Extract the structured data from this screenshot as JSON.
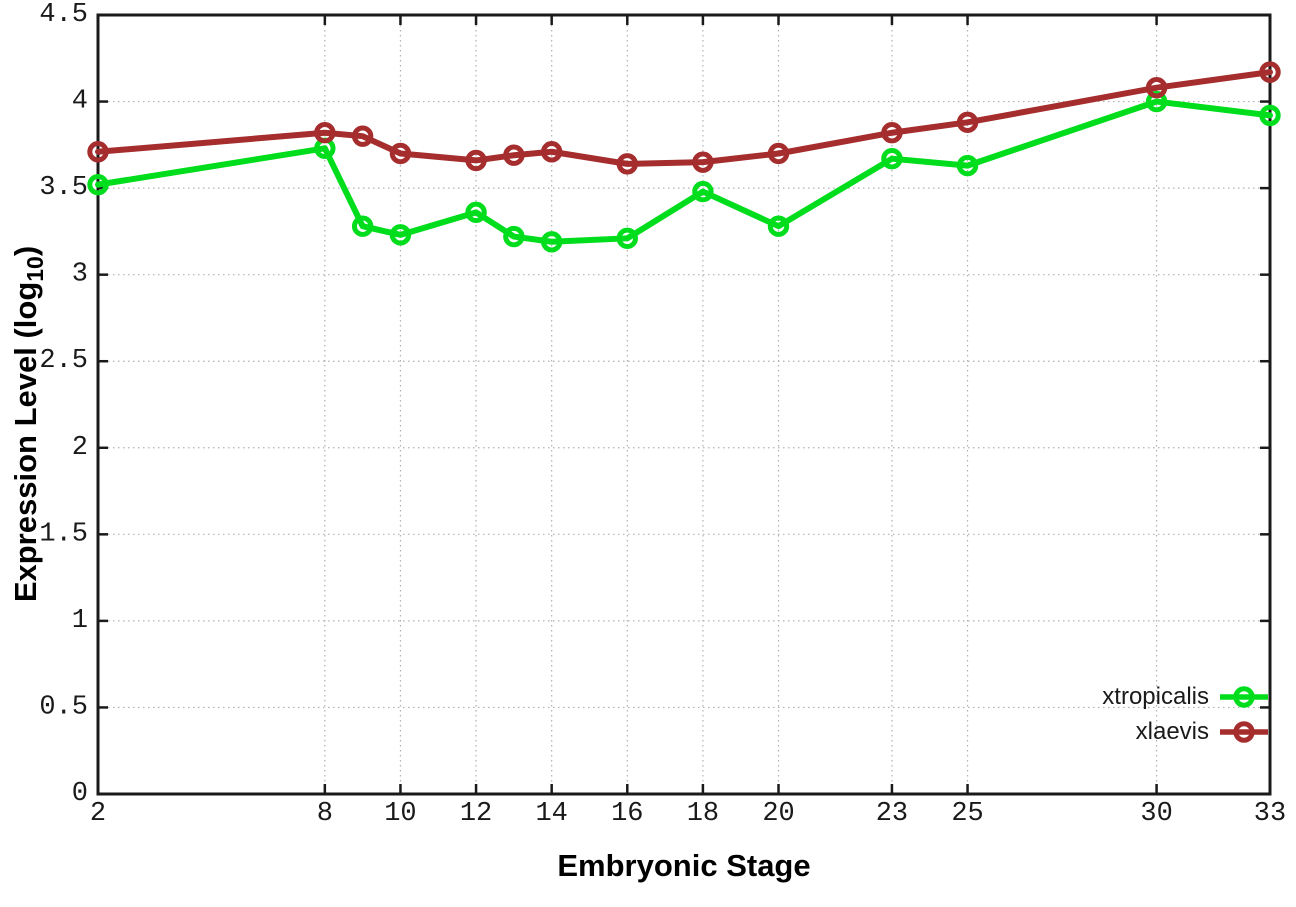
{
  "chart_data": {
    "type": "line",
    "title": "",
    "xlabel": "Embryonic Stage",
    "ylabel": "Expression Level (log10)",
    "ylabel_parts": {
      "pre": "Expression Level (log",
      "sub": "10",
      "post": ")"
    },
    "xlim": [
      2,
      33
    ],
    "ylim": [
      0,
      4.5
    ],
    "x_tick_values": [
      2,
      8,
      10,
      12,
      14,
      16,
      18,
      20,
      23,
      25,
      30,
      33
    ],
    "x_tick_labels": [
      "2",
      "8",
      "10",
      "12",
      "14",
      "16",
      "18",
      "20",
      "23",
      "25",
      "30",
      "33"
    ],
    "y_tick_values": [
      0,
      0.5,
      1,
      1.5,
      2,
      2.5,
      3,
      3.5,
      4,
      4.5
    ],
    "y_tick_labels": [
      "0",
      "0.5",
      "1",
      "1.5",
      "2",
      "2.5",
      "3",
      "3.5",
      "4",
      "4.5"
    ],
    "grid": true,
    "legend_position": "bottom-right",
    "x": [
      2,
      8,
      9,
      10,
      12,
      13,
      14,
      16,
      18,
      20,
      23,
      25,
      30,
      33
    ],
    "series": [
      {
        "name": "xtropicalis",
        "color": "#00dd1c",
        "marker": "open-circle",
        "values": [
          3.52,
          3.73,
          3.28,
          3.23,
          3.36,
          3.22,
          3.19,
          3.21,
          3.48,
          3.28,
          3.67,
          3.63,
          4.0,
          3.92
        ]
      },
      {
        "name": "xlaevis",
        "color": "#a52d2d",
        "marker": "open-circle",
        "values": [
          3.71,
          3.82,
          3.8,
          3.7,
          3.66,
          3.69,
          3.71,
          3.64,
          3.65,
          3.7,
          3.82,
          3.88,
          4.08,
          4.17
        ]
      }
    ],
    "colors": {
      "grid": "#b0b0b0",
      "axis": "#1a1a1a",
      "background": "#ffffff"
    }
  }
}
